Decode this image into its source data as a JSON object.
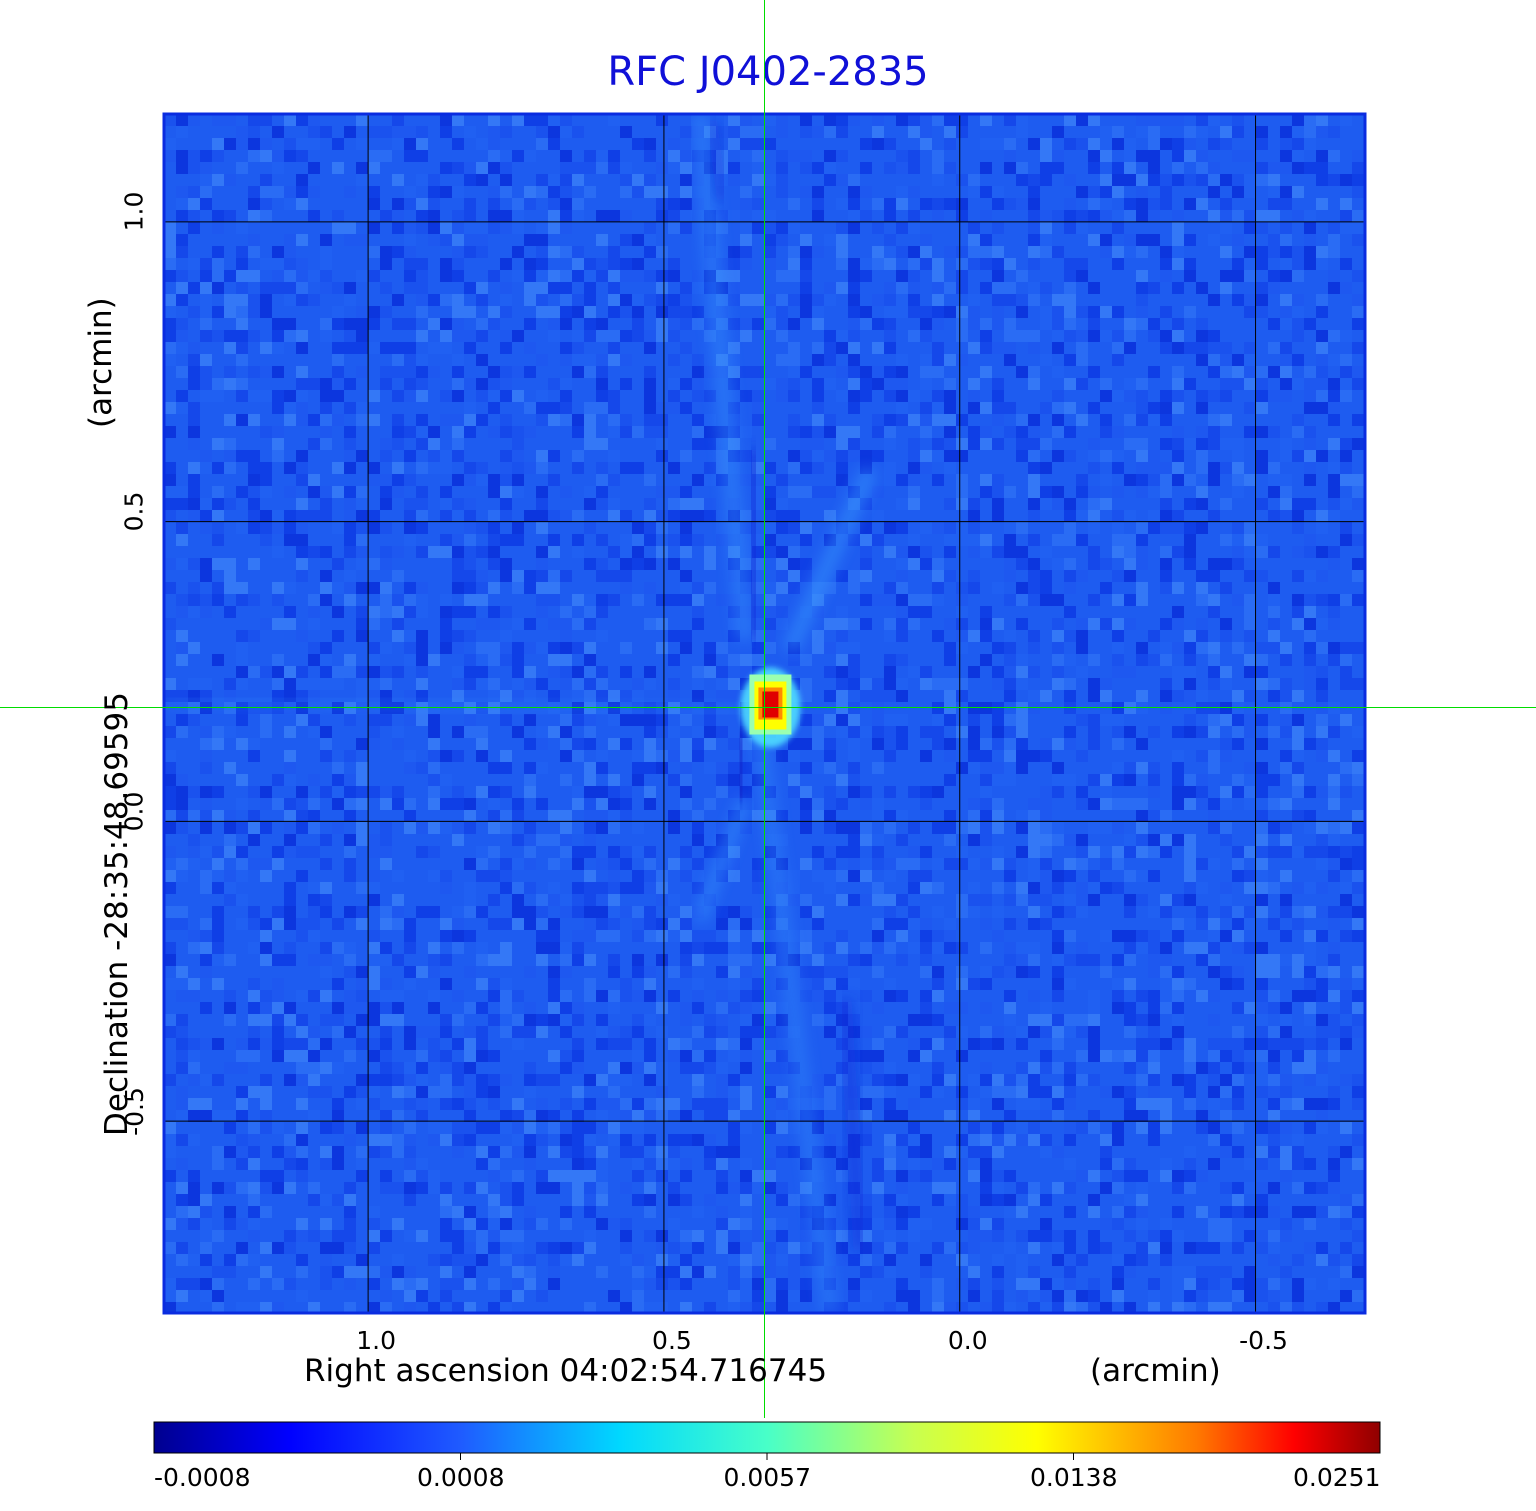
{
  "chart_data": {
    "type": "heatmap",
    "title": "RFC J0402-2835",
    "xlabel": "Right ascension  04:02:54.716745",
    "xunit": "(arcmin)",
    "ylabel": "Declination  -28:35:48.69595",
    "yunit": "(arcmin)",
    "xlim": [
      1.345,
      -0.685
    ],
    "ylim": [
      -0.82,
      1.18
    ],
    "x_ticks": [
      1.0,
      0.5,
      0.0,
      -0.5
    ],
    "x_tick_labels": [
      "1.0",
      "0.5",
      "0.0",
      "-0.5"
    ],
    "y_ticks": [
      1.0,
      0.5,
      0.0,
      -0.5
    ],
    "y_tick_labels": [
      "1.0",
      "0.5",
      "0.0",
      "-0.5"
    ],
    "grid": true,
    "crosshair": {
      "x": 0.33,
      "y": 0.19
    },
    "peak": {
      "x": 0.32,
      "y": 0.19,
      "value": 0.0251
    },
    "colorbar": {
      "ticks": [
        "-0.0008",
        "0.0008",
        "0.0057",
        "0.0138",
        "0.0251"
      ],
      "colormap": "jet"
    }
  },
  "colors": {
    "title": "#1010d8",
    "background_field": "#1e5cf0",
    "grid": "#000000",
    "crosshair": "#00dd00",
    "frame": "#0a2ce0"
  }
}
